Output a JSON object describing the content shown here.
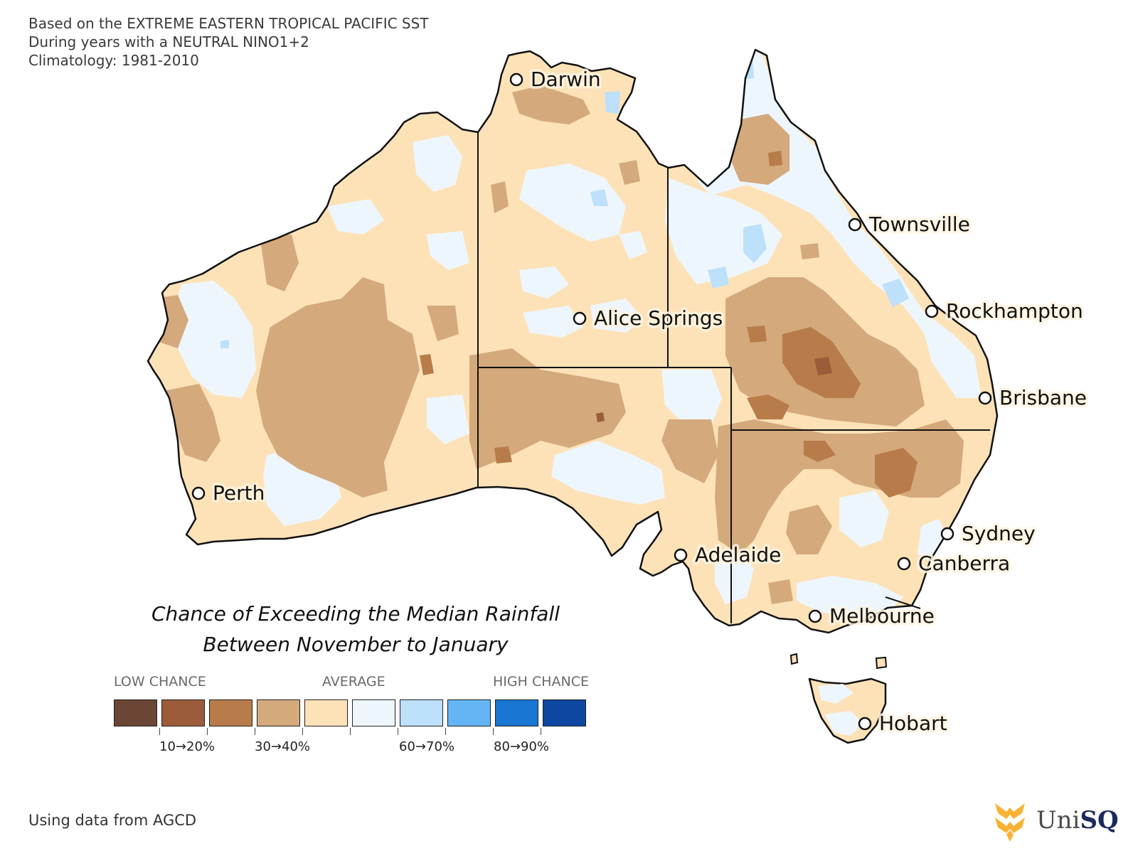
{
  "header": {
    "line1": "Based on the EXTREME EASTERN TROPICAL PACIFIC SST",
    "line2": "During years with a NEUTRAL NINO1+2",
    "line3": "Climatology: 1981-2010"
  },
  "map_title": {
    "line1": "Chance of Exceeding the Median Rainfall",
    "line2": "Between November to January"
  },
  "cities": [
    {
      "name": "Darwin"
    },
    {
      "name": "Townsville"
    },
    {
      "name": "Rockhampton"
    },
    {
      "name": "Alice Springs"
    },
    {
      "name": "Brisbane"
    },
    {
      "name": "Perth"
    },
    {
      "name": "Sydney"
    },
    {
      "name": "Canberra"
    },
    {
      "name": "Adelaide"
    },
    {
      "name": "Melbourne"
    },
    {
      "name": "Hobart"
    }
  ],
  "legend": {
    "low_label": "LOW CHANCE",
    "avg_label": "AVERAGE",
    "high_label": "HIGH CHANCE",
    "colors": [
      "#6b4634",
      "#9c5c3a",
      "#b87c4a",
      "#d4a97c",
      "#fde2b8",
      "#eef6fd",
      "#bde0fb",
      "#64b5f6",
      "#1976d2",
      "#0d47a1"
    ],
    "range_labels": [
      "10→20%",
      "30→40%",
      "60→70%",
      "80→90%"
    ]
  },
  "footer": {
    "source": "Using data from AGCD"
  },
  "logo": {
    "prefix": "Uni",
    "suffix": "SQ",
    "brand_color": "#f9b233"
  }
}
